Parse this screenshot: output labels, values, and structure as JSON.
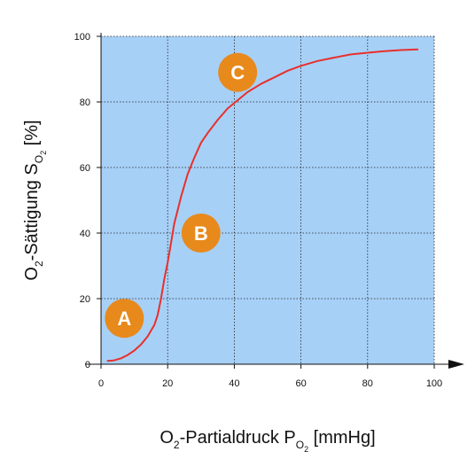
{
  "chart_data": {
    "type": "line",
    "title": "",
    "xlabel": {
      "prefix": "O",
      "sub": "2",
      "middle": "-Partialdruck P",
      "sub2": "O",
      "subsub": "2",
      "suffix": " [mmHg]"
    },
    "ylabel": {
      "prefix": "O",
      "sub": "2",
      "middle": "-Sättigung S",
      "sub2": "O",
      "subsub": "2",
      "suffix": " [%]"
    },
    "xlim": [
      0,
      100
    ],
    "ylim": [
      0,
      100
    ],
    "x_ticks": [
      "0",
      "20",
      "40",
      "60",
      "80",
      "100"
    ],
    "y_ticks": [
      "0",
      "20",
      "40",
      "60",
      "80",
      "100"
    ],
    "grid": true,
    "series": [
      {
        "color": "#e8302a",
        "points": [
          [
            2,
            1
          ],
          [
            4,
            1.2
          ],
          [
            6,
            1.8
          ],
          [
            8,
            2.8
          ],
          [
            10,
            4.2
          ],
          [
            12,
            6
          ],
          [
            14,
            8.5
          ],
          [
            16,
            12
          ],
          [
            17,
            15
          ],
          [
            18,
            20
          ],
          [
            19,
            26
          ],
          [
            20,
            31
          ],
          [
            21,
            37
          ],
          [
            22,
            43
          ],
          [
            23,
            47
          ],
          [
            24,
            51
          ],
          [
            26,
            58
          ],
          [
            28,
            63
          ],
          [
            30,
            67.5
          ],
          [
            32,
            70.5
          ],
          [
            35,
            74.5
          ],
          [
            38,
            78
          ],
          [
            41,
            80.5
          ],
          [
            44,
            83
          ],
          [
            48,
            85.5
          ],
          [
            52,
            87.5
          ],
          [
            56,
            89.5
          ],
          [
            60,
            91
          ],
          [
            65,
            92.5
          ],
          [
            70,
            93.5
          ],
          [
            75,
            94.5
          ],
          [
            80,
            95
          ],
          [
            85,
            95.5
          ],
          [
            90,
            95.8
          ],
          [
            95,
            96
          ]
        ]
      }
    ],
    "markers": [
      {
        "label": "A",
        "x": 7,
        "y": 14
      },
      {
        "label": "B",
        "x": 30,
        "y": 40
      },
      {
        "label": "C",
        "x": 41,
        "y": 89
      }
    ],
    "colors": {
      "plot_background": "#a7d0f7",
      "grid": "#222222",
      "curve": "#e8302a",
      "marker_fill": "#e8891c",
      "axis": "#111111"
    }
  }
}
